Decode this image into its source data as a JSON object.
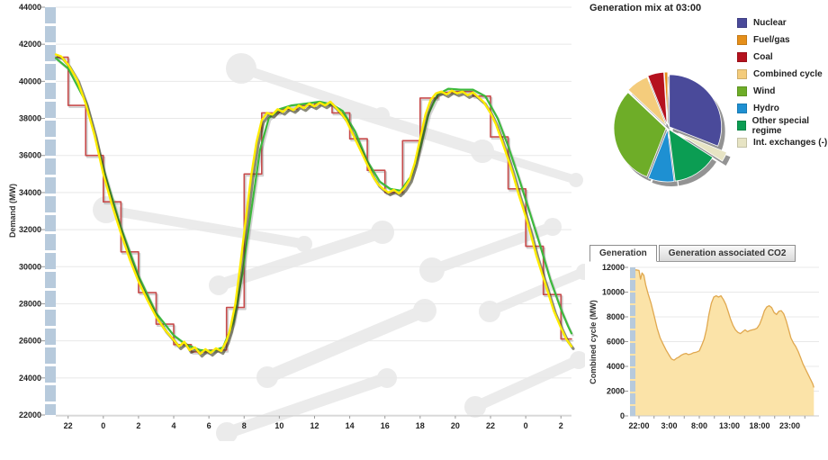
{
  "chart_data": [
    {
      "type": "line",
      "name": "demand",
      "ylabel": "Demand (MW)",
      "y_ticks": [
        44000,
        42000,
        40000,
        38000,
        36000,
        34000,
        32000,
        30000,
        28000,
        26000,
        24000,
        22000
      ],
      "ylim": [
        22000,
        44000
      ],
      "x_tick_hours": [
        1,
        3,
        5,
        7,
        9,
        11,
        13,
        15,
        17,
        19,
        21,
        23,
        25,
        27,
        29
      ],
      "x_tick_labels": [
        "22",
        "0",
        "2",
        "4",
        "6",
        "8",
        "10",
        "12",
        "14",
        "16",
        "18",
        "20",
        "22",
        "0",
        "2"
      ],
      "xlim": [
        0.3,
        29.6
      ],
      "grid": true,
      "series": [
        {
          "name": "actual-demand",
          "color": "#FFEC00",
          "shadow": "#3c3c20",
          "width": 2.4,
          "points": [
            [
              0.3,
              41450
            ],
            [
              0.6,
              41350
            ],
            [
              1,
              40900
            ],
            [
              1.5,
              40100
            ],
            [
              2,
              38800
            ],
            [
              2.5,
              37100
            ],
            [
              3,
              35000
            ],
            [
              3.5,
              33300
            ],
            [
              4,
              31800
            ],
            [
              4.5,
              30400
            ],
            [
              5,
              29200
            ],
            [
              5.5,
              28200
            ],
            [
              6,
              27300
            ],
            [
              6.5,
              26600
            ],
            [
              7,
              26050
            ],
            [
              7.3,
              25700
            ],
            [
              7.6,
              25950
            ],
            [
              7.9,
              25500
            ],
            [
              8.2,
              25650
            ],
            [
              8.5,
              25300
            ],
            [
              8.8,
              25550
            ],
            [
              9.1,
              25350
            ],
            [
              9.4,
              25600
            ],
            [
              9.7,
              25450
            ],
            [
              10,
              26000
            ],
            [
              10.2,
              26600
            ],
            [
              10.5,
              28000
            ],
            [
              10.8,
              30200
            ],
            [
              11.1,
              32600
            ],
            [
              11.4,
              34900
            ],
            [
              11.7,
              36700
            ],
            [
              12,
              37900
            ],
            [
              12.3,
              38300
            ],
            [
              12.6,
              38200
            ],
            [
              12.9,
              38500
            ],
            [
              13.2,
              38350
            ],
            [
              13.5,
              38600
            ],
            [
              13.8,
              38450
            ],
            [
              14.1,
              38700
            ],
            [
              14.4,
              38550
            ],
            [
              14.7,
              38800
            ],
            [
              15,
              38650
            ],
            [
              15.3,
              38850
            ],
            [
              15.6,
              38700
            ],
            [
              15.9,
              38900
            ],
            [
              16.2,
              38600
            ],
            [
              16.5,
              38300
            ],
            [
              16.8,
              37900
            ],
            [
              17.1,
              37300
            ],
            [
              17.4,
              36700
            ],
            [
              17.7,
              36100
            ],
            [
              18,
              35500
            ],
            [
              18.3,
              34900
            ],
            [
              18.6,
              34450
            ],
            [
              18.9,
              34200
            ],
            [
              19.2,
              34000
            ],
            [
              19.5,
              34150
            ],
            [
              19.8,
              33950
            ],
            [
              20.1,
              34250
            ],
            [
              20.4,
              34700
            ],
            [
              20.7,
              35600
            ],
            [
              21,
              36900
            ],
            [
              21.3,
              38200
            ],
            [
              21.6,
              39000
            ],
            [
              21.9,
              39350
            ],
            [
              22.2,
              39450
            ],
            [
              22.5,
              39300
            ],
            [
              22.8,
              39500
            ],
            [
              23.1,
              39350
            ],
            [
              23.4,
              39450
            ],
            [
              23.7,
              39250
            ],
            [
              24,
              39400
            ],
            [
              24.3,
              39150
            ],
            [
              24.6,
              38900
            ],
            [
              25,
              38300
            ],
            [
              25.3,
              37700
            ],
            [
              25.6,
              36900
            ],
            [
              26,
              35800
            ],
            [
              26.3,
              34900
            ],
            [
              26.6,
              33900
            ],
            [
              27,
              32700
            ],
            [
              27.3,
              31700
            ],
            [
              27.6,
              30600
            ],
            [
              28,
              29400
            ],
            [
              28.3,
              28500
            ],
            [
              28.6,
              27600
            ],
            [
              29,
              26700
            ],
            [
              29.3,
              26100
            ],
            [
              29.6,
              25700
            ]
          ]
        },
        {
          "name": "forecast-demand",
          "color": "#3CB93C",
          "shadow": "#555555",
          "width": 2.2,
          "points": [
            [
              0.3,
              41250
            ],
            [
              1,
              40700
            ],
            [
              2,
              38900
            ],
            [
              3,
              35300
            ],
            [
              4,
              32100
            ],
            [
              5,
              29500
            ],
            [
              6,
              27500
            ],
            [
              7,
              26300
            ],
            [
              7.7,
              25800
            ],
            [
              8.5,
              25500
            ],
            [
              9.2,
              25450
            ],
            [
              9.8,
              25650
            ],
            [
              10.4,
              27000
            ],
            [
              10.9,
              29600
            ],
            [
              11.4,
              33000
            ],
            [
              11.9,
              36300
            ],
            [
              12.4,
              38000
            ],
            [
              13,
              38500
            ],
            [
              13.7,
              38700
            ],
            [
              14.5,
              38800
            ],
            [
              15.3,
              38900
            ],
            [
              16,
              38750
            ],
            [
              16.6,
              38400
            ],
            [
              17.3,
              37300
            ],
            [
              18,
              35700
            ],
            [
              18.7,
              34600
            ],
            [
              19.3,
              34200
            ],
            [
              19.9,
              34100
            ],
            [
              20.5,
              34900
            ],
            [
              21,
              36400
            ],
            [
              21.5,
              38300
            ],
            [
              22,
              39300
            ],
            [
              22.6,
              39600
            ],
            [
              23.3,
              39550
            ],
            [
              24,
              39550
            ],
            [
              24.7,
              39200
            ],
            [
              25.4,
              38000
            ],
            [
              26,
              36500
            ],
            [
              26.6,
              34800
            ],
            [
              27.2,
              33000
            ],
            [
              27.8,
              31200
            ],
            [
              28.4,
              29300
            ],
            [
              29,
              27700
            ],
            [
              29.4,
              26800
            ],
            [
              29.6,
              26400
            ]
          ]
        }
      ],
      "step_series": {
        "name": "scheduled-demand",
        "color": "#C74B4B",
        "width": 1.6,
        "start_hour": 0,
        "values": [
          41300,
          38700,
          36000,
          33500,
          30800,
          28600,
          26900,
          25800,
          25400,
          25500,
          27800,
          35000,
          38300,
          38500,
          38700,
          38800,
          38300,
          36900,
          35200,
          34000,
          36800,
          39100,
          39400,
          39450,
          39200,
          37000,
          34200,
          31100,
          28500,
          26100
        ]
      }
    },
    {
      "type": "pie",
      "name": "generation_mix",
      "title": "Generation mix at 03:00",
      "legend": [
        {
          "label": "Nuclear",
          "color": "#4A4A9A"
        },
        {
          "label": "Fuel/gas",
          "color": "#E58F1A"
        },
        {
          "label": "Coal",
          "color": "#B5121E"
        },
        {
          "label": "Combined cycle",
          "color": "#F4CC7C"
        },
        {
          "label": "Wind",
          "color": "#6EAD28"
        },
        {
          "label": "Hydro",
          "color": "#1E90D2"
        },
        {
          "label": "Other special regime",
          "color": "#0B9D53"
        },
        {
          "label": "Int. exchanges (-)",
          "color": "#E7E4C4"
        }
      ],
      "slices": [
        {
          "label": "Nuclear",
          "percent": 31,
          "color": "#4A4A9A",
          "explode": 2
        },
        {
          "label": "Int. exchanges (-)",
          "percent": 3,
          "color": "#E7E4C4",
          "explode": 13
        },
        {
          "label": "Other special regime",
          "percent": 14,
          "color": "#0B9D53",
          "explode": 2
        },
        {
          "label": "Hydro",
          "percent": 8,
          "color": "#1E90D2",
          "explode": 2
        },
        {
          "label": "Wind",
          "percent": 31,
          "color": "#6EAD28",
          "explode": 2
        },
        {
          "label": "Combined cycle",
          "percent": 7,
          "color": "#F4CC7C",
          "explode": 3
        },
        {
          "label": "Coal",
          "percent": 5,
          "color": "#B5121E",
          "explode": 4
        },
        {
          "label": "Fuel/gas",
          "percent": 1,
          "color": "#E58F1A",
          "explode": 4
        }
      ]
    },
    {
      "type": "area",
      "name": "combined_cycle",
      "ylabel": "Combined cycle (MW)",
      "y_ticks": [
        12000,
        10000,
        8000,
        6000,
        4000,
        2000,
        0
      ],
      "ylim": [
        0,
        12000
      ],
      "x_tick_hours": [
        1,
        6,
        11,
        16,
        21,
        26
      ],
      "x_tick_labels": [
        "22:00",
        "3:00",
        "8:00",
        "13:00",
        "18:00",
        "23:00"
      ],
      "minor_tick_hours": [
        1,
        3.5,
        6,
        8.5,
        11,
        13.5,
        16,
        18.5,
        21,
        23.5,
        26,
        28.5
      ],
      "xlim": [
        -0.5,
        30
      ],
      "fill": "#FBE3A8",
      "stroke": "#E0A84F",
      "points": [
        [
          -0.5,
          11700
        ],
        [
          0,
          11750
        ],
        [
          0.5,
          11800
        ],
        [
          1,
          11750
        ],
        [
          1.25,
          11050
        ],
        [
          1.5,
          11550
        ],
        [
          1.8,
          11350
        ],
        [
          2.1,
          10600
        ],
        [
          2.5,
          9900
        ],
        [
          3,
          9100
        ],
        [
          3.5,
          8100
        ],
        [
          4,
          7100
        ],
        [
          4.5,
          6300
        ],
        [
          5,
          5800
        ],
        [
          5.5,
          5300
        ],
        [
          6,
          4900
        ],
        [
          6.4,
          4600
        ],
        [
          6.8,
          4500
        ],
        [
          7.2,
          4650
        ],
        [
          7.6,
          4750
        ],
        [
          8,
          4900
        ],
        [
          8.4,
          5000
        ],
        [
          8.8,
          5050
        ],
        [
          9.2,
          4950
        ],
        [
          9.6,
          5000
        ],
        [
          10,
          5100
        ],
        [
          10.5,
          5150
        ],
        [
          11,
          5250
        ],
        [
          11.4,
          5700
        ],
        [
          11.8,
          6200
        ],
        [
          12.2,
          7000
        ],
        [
          12.6,
          8200
        ],
        [
          13,
          9100
        ],
        [
          13.4,
          9600
        ],
        [
          13.8,
          9700
        ],
        [
          14.2,
          9600
        ],
        [
          14.6,
          9700
        ],
        [
          15,
          9400
        ],
        [
          15.4,
          9000
        ],
        [
          15.8,
          8400
        ],
        [
          16.2,
          7800
        ],
        [
          16.6,
          7300
        ],
        [
          17,
          6950
        ],
        [
          17.4,
          6750
        ],
        [
          17.8,
          6650
        ],
        [
          18.2,
          6800
        ],
        [
          18.6,
          6950
        ],
        [
          19,
          6800
        ],
        [
          19.4,
          6900
        ],
        [
          19.8,
          6950
        ],
        [
          20.2,
          7000
        ],
        [
          20.6,
          7100
        ],
        [
          21,
          7400
        ],
        [
          21.4,
          7900
        ],
        [
          21.8,
          8500
        ],
        [
          22.2,
          8800
        ],
        [
          22.6,
          8900
        ],
        [
          23,
          8750
        ],
        [
          23.4,
          8350
        ],
        [
          23.8,
          8200
        ],
        [
          24.2,
          8450
        ],
        [
          24.6,
          8500
        ],
        [
          25,
          8250
        ],
        [
          25.4,
          7700
        ],
        [
          25.8,
          7000
        ],
        [
          26.2,
          6300
        ],
        [
          26.6,
          5900
        ],
        [
          27,
          5600
        ],
        [
          27.4,
          5200
        ],
        [
          27.8,
          4700
        ],
        [
          28.2,
          4200
        ],
        [
          28.6,
          3800
        ],
        [
          29,
          3400
        ],
        [
          29.4,
          3000
        ],
        [
          29.8,
          2600
        ],
        [
          30,
          2300
        ]
      ]
    }
  ],
  "generation_panel": {
    "tabs": [
      {
        "label": "Generation",
        "active": true
      },
      {
        "label": "Generation associated CO2",
        "active": false
      }
    ]
  },
  "colors": {
    "grid": "#E8E8E8",
    "axis": "#C9C9C9",
    "tick": "#999999",
    "tick_text": "#222222",
    "scrubber": "#B7CADC",
    "watermark": "#EBEBEB"
  }
}
